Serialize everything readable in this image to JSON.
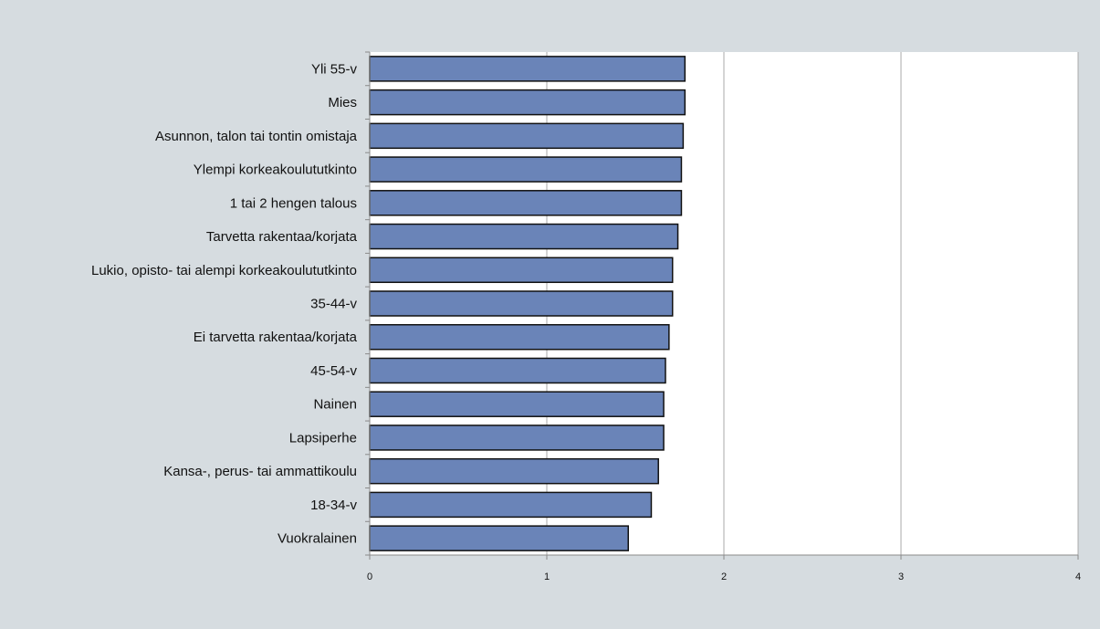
{
  "chart_data": {
    "type": "bar",
    "orientation": "horizontal",
    "categories": [
      "Yli 55-v",
      "Mies",
      "Asunnon, talon tai tontin omistaja",
      "Ylempi korkeakoulututkinto",
      "1 tai 2 hengen talous",
      "Tarvetta rakentaa/korjata",
      "Lukio, opisto- tai alempi korkeakoulututkinto",
      "35-44-v",
      "Ei tarvetta rakentaa/korjata",
      "45-54-v",
      "Nainen",
      "Lapsiperhe",
      "Kansa-, perus- tai ammattikoulu",
      "18-34-v",
      "Vuokralainen"
    ],
    "values": [
      1.78,
      1.78,
      1.77,
      1.76,
      1.76,
      1.74,
      1.71,
      1.71,
      1.69,
      1.67,
      1.66,
      1.66,
      1.63,
      1.59,
      1.46
    ],
    "xlim": [
      0,
      4
    ],
    "xticks": [
      "0",
      "1",
      "2",
      "3",
      "4"
    ],
    "grid": "vertical",
    "legend": "none",
    "colors": {
      "bar_fill": "#6a84b8",
      "bar_stroke": "#111111",
      "plot_bg": "#ffffff",
      "page_bg": "#d6dce0",
      "grid": "#a8a8a8",
      "axis": "#8a8a8a",
      "text": "#111111"
    }
  }
}
